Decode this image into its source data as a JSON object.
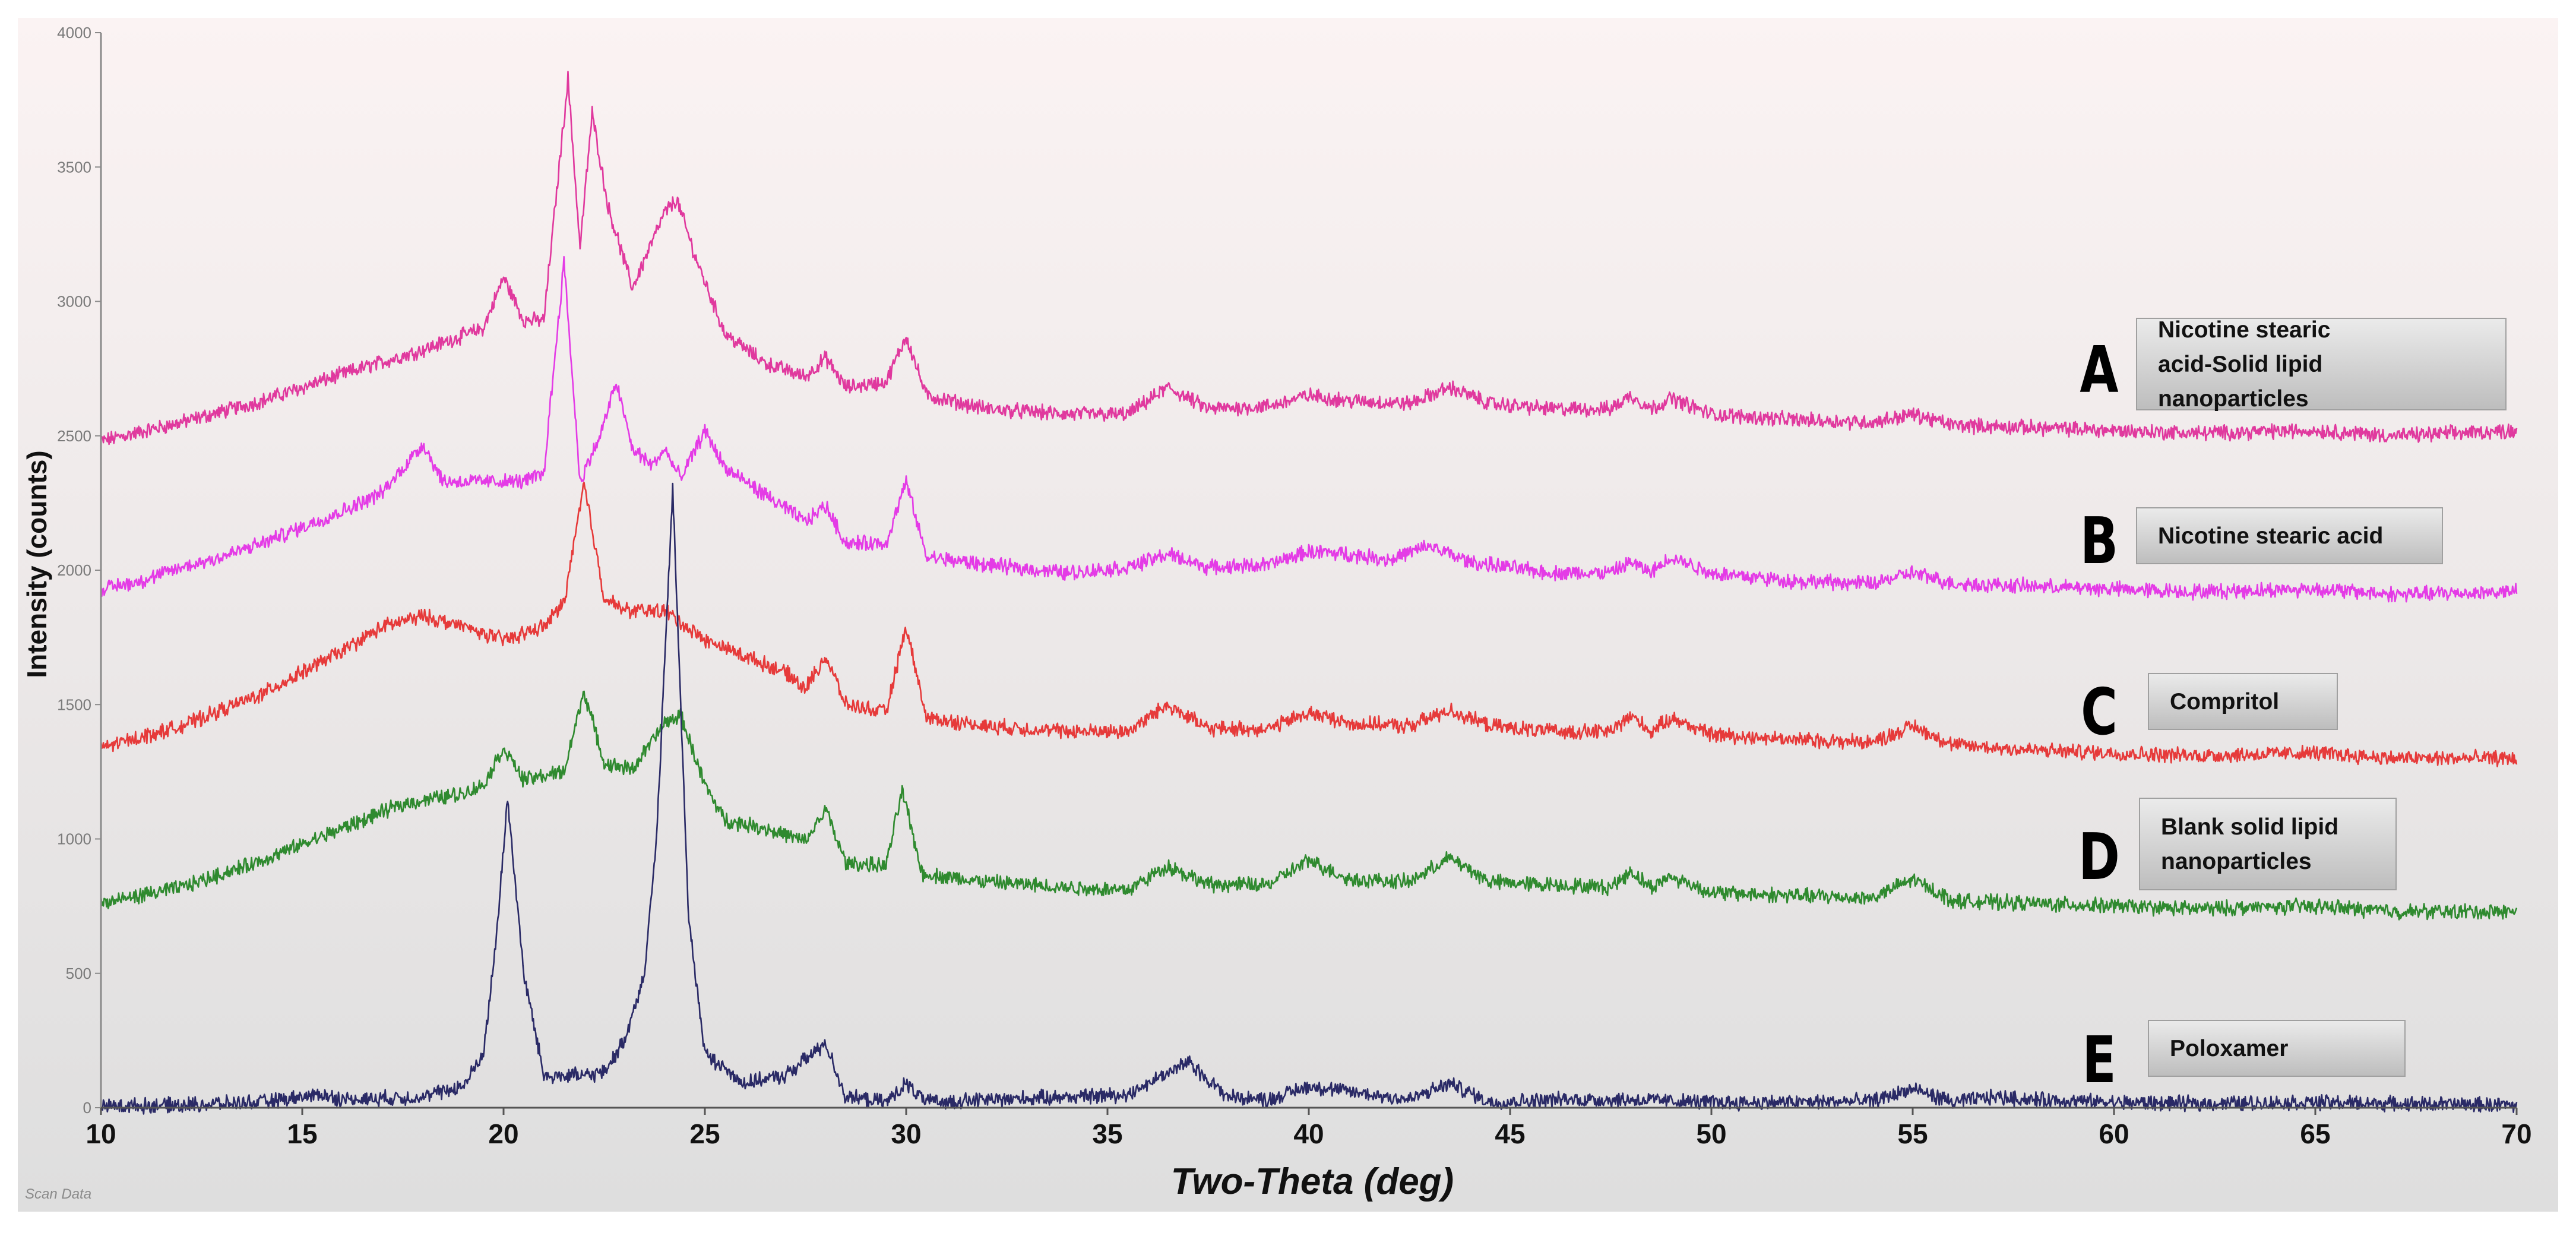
{
  "chart_data": {
    "type": "line",
    "xlabel": "Two-Theta (deg)",
    "ylabel": "Intensity (counts)",
    "footer": "Scan Data",
    "xlim": [
      10,
      70
    ],
    "ylim": [
      0,
      4000
    ],
    "x_ticks": [
      10,
      15,
      20,
      25,
      30,
      35,
      40,
      45,
      50,
      55,
      60,
      65,
      70
    ],
    "y_ticks": [
      0,
      500,
      1000,
      1500,
      2000,
      2500,
      3000,
      3500,
      4000
    ],
    "grid": false,
    "series": [
      {
        "letter": "A",
        "name": "Nicotine stearic acid-Solid lipid nanoparticles",
        "color": "#e0399e",
        "points": [
          [
            10,
            2480
          ],
          [
            12,
            2550
          ],
          [
            14,
            2630
          ],
          [
            16,
            2730
          ],
          [
            18,
            2820
          ],
          [
            19.5,
            2900
          ],
          [
            20,
            3090
          ],
          [
            20.5,
            2930
          ],
          [
            21,
            2930
          ],
          [
            21.6,
            3830
          ],
          [
            21.9,
            3200
          ],
          [
            22.2,
            3700
          ],
          [
            22.6,
            3350
          ],
          [
            23.2,
            3050
          ],
          [
            24,
            3330
          ],
          [
            24.3,
            3380
          ],
          [
            24.8,
            3150
          ],
          [
            25.5,
            2880
          ],
          [
            26.5,
            2770
          ],
          [
            27.5,
            2720
          ],
          [
            28,
            2790
          ],
          [
            28.5,
            2680
          ],
          [
            29.5,
            2700
          ],
          [
            30,
            2870
          ],
          [
            30.5,
            2650
          ],
          [
            32,
            2600
          ],
          [
            34,
            2580
          ],
          [
            35.5,
            2580
          ],
          [
            36.5,
            2680
          ],
          [
            37.5,
            2600
          ],
          [
            39,
            2610
          ],
          [
            40,
            2650
          ],
          [
            41,
            2630
          ],
          [
            42.5,
            2620
          ],
          [
            43.5,
            2680
          ],
          [
            44.5,
            2620
          ],
          [
            46,
            2600
          ],
          [
            47.5,
            2600
          ],
          [
            48,
            2650
          ],
          [
            48.5,
            2600
          ],
          [
            49,
            2640
          ],
          [
            50,
            2580
          ],
          [
            52,
            2560
          ],
          [
            54,
            2550
          ],
          [
            55,
            2580
          ],
          [
            56,
            2540
          ],
          [
            58,
            2530
          ],
          [
            60,
            2520
          ],
          [
            62,
            2510
          ],
          [
            65,
            2520
          ],
          [
            67,
            2500
          ],
          [
            70,
            2520
          ]
        ]
      },
      {
        "letter": "B",
        "name": "Nicotine stearic acid",
        "color": "#e43be6",
        "points": [
          [
            10,
            1930
          ],
          [
            11,
            1960
          ],
          [
            12,
            2010
          ],
          [
            13,
            2050
          ],
          [
            14,
            2100
          ],
          [
            15,
            2160
          ],
          [
            16,
            2220
          ],
          [
            17,
            2290
          ],
          [
            18,
            2470
          ],
          [
            18.5,
            2330
          ],
          [
            19.5,
            2330
          ],
          [
            20.5,
            2330
          ],
          [
            21,
            2360
          ],
          [
            21.5,
            3150
          ],
          [
            21.9,
            2330
          ],
          [
            22.4,
            2500
          ],
          [
            22.8,
            2700
          ],
          [
            23.2,
            2450
          ],
          [
            23.7,
            2390
          ],
          [
            24,
            2450
          ],
          [
            24.4,
            2340
          ],
          [
            25,
            2520
          ],
          [
            25.5,
            2380
          ],
          [
            26.5,
            2280
          ],
          [
            27.5,
            2180
          ],
          [
            28,
            2240
          ],
          [
            28.5,
            2100
          ],
          [
            29.5,
            2100
          ],
          [
            30,
            2330
          ],
          [
            30.5,
            2050
          ],
          [
            32,
            2020
          ],
          [
            34,
            1990
          ],
          [
            35.5,
            2010
          ],
          [
            36.5,
            2060
          ],
          [
            37.5,
            2010
          ],
          [
            39,
            2020
          ],
          [
            40,
            2070
          ],
          [
            41,
            2060
          ],
          [
            42,
            2040
          ],
          [
            43,
            2090
          ],
          [
            44,
            2030
          ],
          [
            45,
            2010
          ],
          [
            46,
            1990
          ],
          [
            47.5,
            1990
          ],
          [
            48,
            2030
          ],
          [
            48.5,
            1990
          ],
          [
            49,
            2050
          ],
          [
            50,
            1990
          ],
          [
            52,
            1960
          ],
          [
            54,
            1950
          ],
          [
            55,
            1990
          ],
          [
            56,
            1950
          ],
          [
            58,
            1940
          ],
          [
            60,
            1930
          ],
          [
            62,
            1920
          ],
          [
            65,
            1930
          ],
          [
            67,
            1910
          ],
          [
            70,
            1920
          ]
        ]
      },
      {
        "letter": "C",
        "name": "Compritol",
        "color": "#e63a3a",
        "points": [
          [
            10,
            1340
          ],
          [
            12,
            1420
          ],
          [
            14,
            1540
          ],
          [
            16,
            1700
          ],
          [
            17,
            1790
          ],
          [
            18,
            1830
          ],
          [
            19,
            1790
          ],
          [
            20,
            1740
          ],
          [
            21,
            1790
          ],
          [
            21.5,
            1880
          ],
          [
            22,
            2320
          ],
          [
            22.5,
            1900
          ],
          [
            23,
            1850
          ],
          [
            24,
            1850
          ],
          [
            25,
            1740
          ],
          [
            26,
            1680
          ],
          [
            27,
            1620
          ],
          [
            27.5,
            1560
          ],
          [
            28,
            1680
          ],
          [
            28.5,
            1500
          ],
          [
            29.5,
            1470
          ],
          [
            30,
            1790
          ],
          [
            30.5,
            1450
          ],
          [
            32,
            1420
          ],
          [
            34,
            1400
          ],
          [
            35.5,
            1400
          ],
          [
            36.5,
            1500
          ],
          [
            37.5,
            1410
          ],
          [
            39,
            1410
          ],
          [
            40,
            1470
          ],
          [
            41,
            1430
          ],
          [
            42.5,
            1420
          ],
          [
            43.5,
            1480
          ],
          [
            44.5,
            1420
          ],
          [
            46,
            1400
          ],
          [
            47.5,
            1400
          ],
          [
            48,
            1460
          ],
          [
            48.5,
            1400
          ],
          [
            49,
            1450
          ],
          [
            50,
            1390
          ],
          [
            52,
            1370
          ],
          [
            54,
            1360
          ],
          [
            55,
            1420
          ],
          [
            56,
            1350
          ],
          [
            58,
            1330
          ],
          [
            60,
            1320
          ],
          [
            62,
            1310
          ],
          [
            65,
            1320
          ],
          [
            67,
            1300
          ],
          [
            70,
            1300
          ]
        ]
      },
      {
        "letter": "D",
        "name": "Blank solid lipid nanoparticles",
        "color": "#2f8a2f",
        "points": [
          [
            10,
            760
          ],
          [
            12,
            820
          ],
          [
            14,
            920
          ],
          [
            16,
            1040
          ],
          [
            17.5,
            1130
          ],
          [
            19,
            1170
          ],
          [
            19.5,
            1200
          ],
          [
            20,
            1340
          ],
          [
            20.5,
            1220
          ],
          [
            21.5,
            1250
          ],
          [
            22,
            1550
          ],
          [
            22.5,
            1280
          ],
          [
            23.2,
            1260
          ],
          [
            24,
            1430
          ],
          [
            24.4,
            1460
          ],
          [
            25,
            1200
          ],
          [
            25.5,
            1070
          ],
          [
            26.5,
            1040
          ],
          [
            27.5,
            990
          ],
          [
            28,
            1110
          ],
          [
            28.5,
            910
          ],
          [
            29.5,
            900
          ],
          [
            29.9,
            1180
          ],
          [
            30.4,
            870
          ],
          [
            32,
            840
          ],
          [
            34,
            820
          ],
          [
            35.5,
            810
          ],
          [
            36.5,
            900
          ],
          [
            37.5,
            830
          ],
          [
            39,
            830
          ],
          [
            40,
            920
          ],
          [
            41,
            850
          ],
          [
            42.5,
            840
          ],
          [
            43.5,
            930
          ],
          [
            44.5,
            840
          ],
          [
            46,
            830
          ],
          [
            47.5,
            820
          ],
          [
            48,
            880
          ],
          [
            48.5,
            820
          ],
          [
            49,
            860
          ],
          [
            50,
            800
          ],
          [
            52,
            790
          ],
          [
            54,
            780
          ],
          [
            55,
            850
          ],
          [
            56,
            770
          ],
          [
            58,
            760
          ],
          [
            60,
            750
          ],
          [
            62,
            740
          ],
          [
            65,
            750
          ],
          [
            67,
            730
          ],
          [
            70,
            730
          ]
        ]
      },
      {
        "letter": "E",
        "name": "Poloxamer",
        "color": "#2a2a66",
        "points": [
          [
            10,
            5
          ],
          [
            12,
            10
          ],
          [
            14,
            20
          ],
          [
            15.5,
            50
          ],
          [
            16,
            30
          ],
          [
            18,
            40
          ],
          [
            19,
            80
          ],
          [
            19.5,
            200
          ],
          [
            19.8,
            600
          ],
          [
            20.1,
            1150
          ],
          [
            20.5,
            500
          ],
          [
            21,
            120
          ],
          [
            22,
            120
          ],
          [
            22.5,
            130
          ],
          [
            23,
            250
          ],
          [
            23.5,
            500
          ],
          [
            23.8,
            1000
          ],
          [
            24.2,
            2300
          ],
          [
            24.6,
            700
          ],
          [
            25,
            200
          ],
          [
            26,
            90
          ],
          [
            27,
            120
          ],
          [
            27.5,
            180
          ],
          [
            28,
            240
          ],
          [
            28.5,
            40
          ],
          [
            29.5,
            20
          ],
          [
            30,
            90
          ],
          [
            30.5,
            20
          ],
          [
            32,
            30
          ],
          [
            34,
            40
          ],
          [
            35.5,
            50
          ],
          [
            36.5,
            130
          ],
          [
            37,
            170
          ],
          [
            38,
            40
          ],
          [
            39,
            30
          ],
          [
            40,
            80
          ],
          [
            41,
            60
          ],
          [
            42.5,
            30
          ],
          [
            43.5,
            90
          ],
          [
            44.5,
            20
          ],
          [
            46,
            30
          ],
          [
            48,
            30
          ],
          [
            50,
            20
          ],
          [
            52,
            20
          ],
          [
            54,
            25
          ],
          [
            55,
            70
          ],
          [
            56,
            20
          ],
          [
            57,
            40
          ],
          [
            58,
            30
          ],
          [
            60,
            20
          ],
          [
            62,
            15
          ],
          [
            65,
            20
          ],
          [
            67,
            15
          ],
          [
            70,
            10
          ]
        ]
      }
    ]
  }
}
